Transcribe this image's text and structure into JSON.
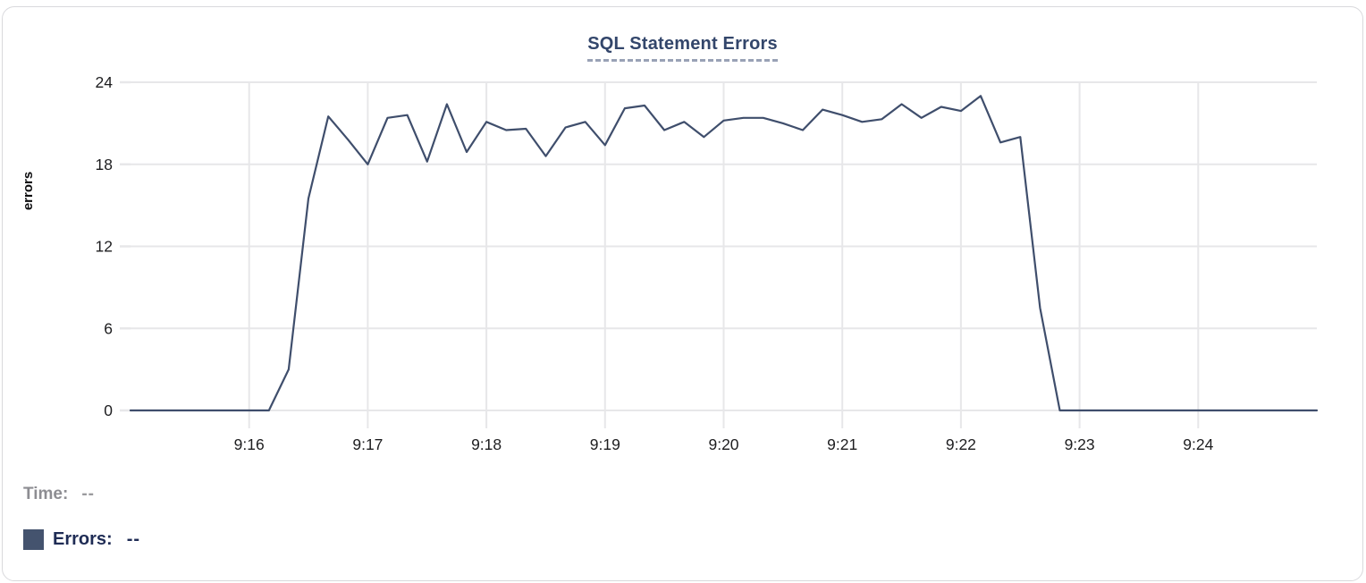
{
  "chart_data": {
    "type": "line",
    "title": "SQL Statement Errors",
    "xlabel": "",
    "ylabel": "errors",
    "ylim": [
      0,
      24
    ],
    "y_ticks": [
      0,
      6,
      12,
      18,
      24
    ],
    "xlim_seconds": [
      0,
      600
    ],
    "x_ticks": [
      {
        "sec": 60,
        "label": "9:16"
      },
      {
        "sec": 120,
        "label": "9:17"
      },
      {
        "sec": 180,
        "label": "9:18"
      },
      {
        "sec": 240,
        "label": "9:19"
      },
      {
        "sec": 300,
        "label": "9:20"
      },
      {
        "sec": 360,
        "label": "9:21"
      },
      {
        "sec": 420,
        "label": "9:22"
      },
      {
        "sec": 480,
        "label": "9:23"
      },
      {
        "sec": 540,
        "label": "9:24"
      }
    ],
    "grid": true,
    "legend_position": "bottom-left",
    "series": [
      {
        "name": "Errors",
        "color": "#3f4e6c",
        "points": [
          [
            0,
            0
          ],
          [
            10,
            0
          ],
          [
            20,
            0
          ],
          [
            30,
            0
          ],
          [
            40,
            0
          ],
          [
            50,
            0
          ],
          [
            60,
            0
          ],
          [
            70,
            0
          ],
          [
            80,
            3
          ],
          [
            90,
            15.5
          ],
          [
            100,
            21.5
          ],
          [
            110,
            19.8
          ],
          [
            120,
            18
          ],
          [
            130,
            21.4
          ],
          [
            140,
            21.6
          ],
          [
            150,
            18.2
          ],
          [
            160,
            22.4
          ],
          [
            170,
            18.9
          ],
          [
            180,
            21.1
          ],
          [
            190,
            20.5
          ],
          [
            200,
            20.6
          ],
          [
            210,
            18.6
          ],
          [
            220,
            20.7
          ],
          [
            230,
            21.1
          ],
          [
            240,
            19.4
          ],
          [
            250,
            22.1
          ],
          [
            260,
            22.3
          ],
          [
            270,
            20.5
          ],
          [
            280,
            21.1
          ],
          [
            290,
            20
          ],
          [
            300,
            21.2
          ],
          [
            310,
            21.4
          ],
          [
            320,
            21.4
          ],
          [
            330,
            21
          ],
          [
            340,
            20.5
          ],
          [
            350,
            22
          ],
          [
            360,
            21.6
          ],
          [
            370,
            21.1
          ],
          [
            380,
            21.3
          ],
          [
            390,
            22.4
          ],
          [
            400,
            21.4
          ],
          [
            410,
            22.2
          ],
          [
            420,
            21.9
          ],
          [
            430,
            23
          ],
          [
            440,
            19.6
          ],
          [
            450,
            20
          ],
          [
            460,
            7.5
          ],
          [
            470,
            0
          ],
          [
            480,
            0
          ],
          [
            490,
            0
          ],
          [
            500,
            0
          ],
          [
            510,
            0
          ],
          [
            520,
            0
          ],
          [
            530,
            0
          ],
          [
            540,
            0
          ],
          [
            550,
            0
          ],
          [
            560,
            0
          ],
          [
            570,
            0
          ],
          [
            580,
            0
          ],
          [
            590,
            0
          ],
          [
            600,
            0
          ]
        ]
      }
    ]
  },
  "tooltip_legend": {
    "time_label": "Time:",
    "time_value": "--",
    "series_label": "Errors:",
    "series_value": "--",
    "swatch_color": "#44536e"
  },
  "colors": {
    "line": "#3f4e6c",
    "grid": "#e7e7e9",
    "axis_text": "#1d1d1f",
    "title": "#33466b",
    "title_underline": "#99a2b6",
    "card_border": "#d9d9dc"
  }
}
